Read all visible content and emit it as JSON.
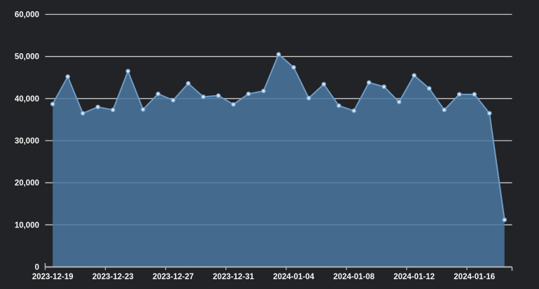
{
  "chart_data": {
    "type": "area",
    "title": "",
    "xlabel": "",
    "ylabel": "",
    "x": [
      "2023-12-19",
      "2023-12-20",
      "2023-12-21",
      "2023-12-22",
      "2023-12-23",
      "2023-12-24",
      "2023-12-25",
      "2023-12-26",
      "2023-12-27",
      "2023-12-28",
      "2023-12-29",
      "2023-12-30",
      "2023-12-31",
      "2024-01-01",
      "2024-01-02",
      "2024-01-03",
      "2024-01-04",
      "2024-01-05",
      "2024-01-06",
      "2024-01-07",
      "2024-01-08",
      "2024-01-09",
      "2024-01-10",
      "2024-01-11",
      "2024-01-12",
      "2024-01-13",
      "2024-01-14",
      "2024-01-15",
      "2024-01-16",
      "2024-01-17",
      "2024-01-18"
    ],
    "values": [
      38700,
      45200,
      36500,
      38000,
      37300,
      46500,
      37400,
      41100,
      39600,
      43600,
      40400,
      40700,
      38600,
      41100,
      41800,
      50500,
      47400,
      40100,
      43400,
      38300,
      37100,
      43800,
      42800,
      39200,
      45500,
      42400,
      37300,
      41000,
      41000,
      36500,
      11200
    ],
    "x_tick_labels": [
      "2023-12-19",
      "2023-12-23",
      "2023-12-27",
      "2023-12-31",
      "2024-01-04",
      "2024-01-08",
      "2024-01-12",
      "2024-01-16"
    ],
    "x_tick_every": 4,
    "y_ticks": [
      0,
      10000,
      20000,
      30000,
      40000,
      50000,
      60000
    ],
    "y_tick_labels": [
      "0",
      "10,000",
      "20,000",
      "30,000",
      "40,000",
      "50,000",
      "60,000"
    ],
    "ylim": [
      0,
      60000
    ],
    "grid": true,
    "legend": "none",
    "colors": {
      "background": "#222326",
      "area_fill": "rgba(74,119,161,0.85)",
      "line": "#6f9bc4",
      "marker_fill": "#d6e6f4",
      "marker_stroke": "#7aa6d0",
      "gridline": "#c8c8c8",
      "axis_line": "#b5b5b5",
      "tick_text": "#f5f5f5"
    }
  }
}
